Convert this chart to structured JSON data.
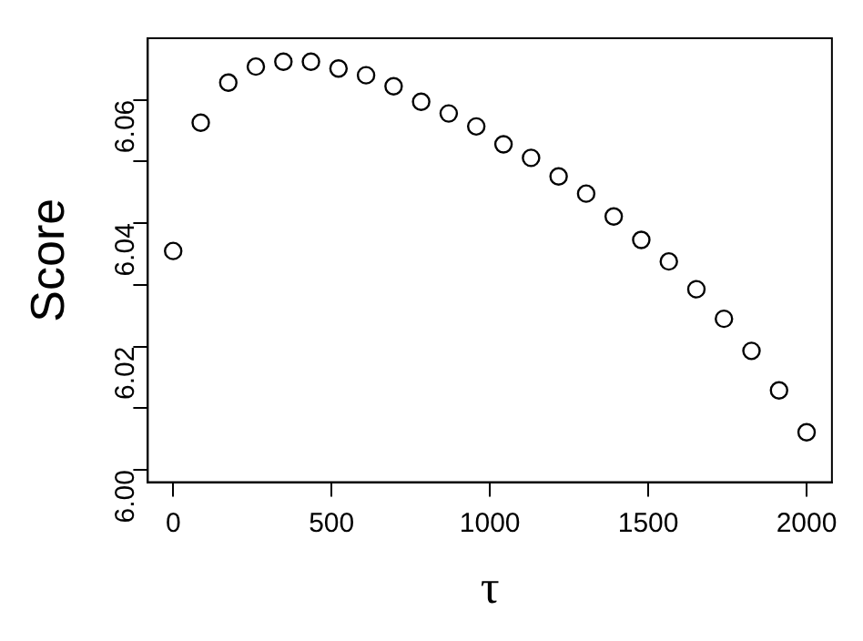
{
  "chart_data": {
    "type": "scatter",
    "xlabel": "τ",
    "ylabel": "Score",
    "x": [
      0,
      87,
      174,
      261,
      348,
      435,
      522,
      609,
      696,
      783,
      870,
      957,
      1043,
      1130,
      1217,
      1304,
      1391,
      1478,
      1565,
      1652,
      1739,
      1826,
      1913,
      2000
    ],
    "values": [
      6.0355,
      6.0563,
      6.0628,
      6.0654,
      6.0662,
      6.0662,
      6.0651,
      6.064,
      6.0622,
      6.0597,
      6.0578,
      6.0557,
      6.0528,
      6.0506,
      6.0476,
      6.0448,
      6.0411,
      6.0373,
      6.0338,
      6.0293,
      6.0245,
      6.0193,
      6.0129,
      6.0061
    ],
    "color": "#000000",
    "marker": "circle",
    "xlim": [
      -80,
      2080
    ],
    "xticks": [
      0,
      500,
      1000,
      1500,
      2000
    ],
    "ylim": [
      5.998,
      6.07
    ],
    "yticks": [
      {
        "value": 6,
        "label": "6.00"
      },
      {
        "value": 6.01,
        "label": null
      },
      {
        "value": 6.02,
        "label": "6.02"
      },
      {
        "value": 6.03,
        "label": null
      },
      {
        "value": 6.04,
        "label": "6.04"
      },
      {
        "value": 6.05,
        "label": null
      },
      {
        "value": 6.06,
        "label": "6.06"
      }
    ],
    "grid": false,
    "legend": false
  }
}
